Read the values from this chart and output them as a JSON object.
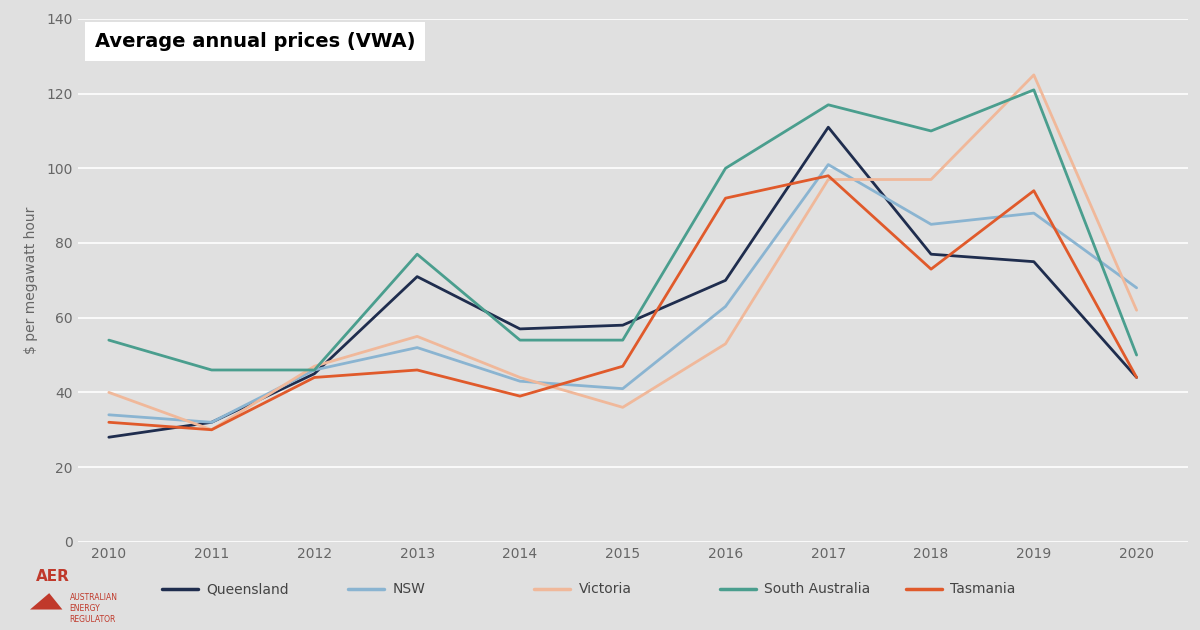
{
  "title": "Average annual prices (VWA)",
  "ylabel": "$ per megawatt hour",
  "years": [
    2010,
    2011,
    2012,
    2013,
    2014,
    2015,
    2016,
    2017,
    2018,
    2019,
    2020
  ],
  "series": {
    "Queensland": [
      28,
      32,
      45,
      71,
      57,
      58,
      70,
      111,
      77,
      75,
      44
    ],
    "NSW": [
      34,
      32,
      46,
      52,
      43,
      41,
      63,
      101,
      85,
      88,
      68
    ],
    "Victoria": [
      40,
      30,
      47,
      55,
      44,
      36,
      53,
      97,
      97,
      125,
      62
    ],
    "South Australia": [
      54,
      46,
      46,
      77,
      54,
      54,
      100,
      117,
      110,
      121,
      50
    ],
    "Tasmania": [
      32,
      30,
      44,
      46,
      39,
      47,
      92,
      98,
      73,
      94,
      44
    ]
  },
  "colors": {
    "Queensland": "#1f2d4e",
    "NSW": "#8ab4d1",
    "Victoria": "#f0b89a",
    "South Australia": "#4a9e8e",
    "Tasmania": "#e05a2b"
  },
  "ylim": [
    0,
    140
  ],
  "yticks": [
    0,
    20,
    40,
    60,
    80,
    100,
    120,
    140
  ],
  "background_color": "#e0e0e0",
  "plot_background": "#e0e0e0",
  "bottom_strip_color": "#d8d8d8",
  "title_fontsize": 14,
  "legend_fontsize": 10,
  "axis_fontsize": 10,
  "linewidth": 2.0,
  "xlim_left": 2009.7,
  "xlim_right": 2020.5
}
